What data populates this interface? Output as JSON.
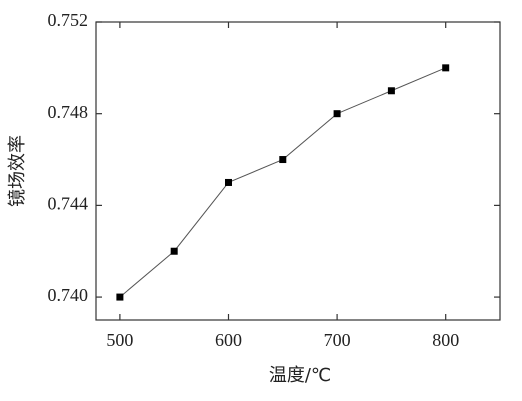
{
  "chart_data": {
    "type": "line",
    "x_label": "温度/℃",
    "y_label": "镜场效率",
    "x": [
      500,
      550,
      600,
      650,
      700,
      750,
      800
    ],
    "series": [
      {
        "color": "#000000",
        "values": [
          0.74,
          0.742,
          0.745,
          0.746,
          0.748,
          0.749,
          0.75
        ]
      }
    ],
    "xlim": [
      478,
      850
    ],
    "xticks": [
      500,
      600,
      700,
      800
    ],
    "ylim": [
      0.739,
      0.752
    ],
    "yticks": [
      {
        "value": 0.74,
        "label": "0.740"
      },
      0.744,
      0.748,
      0.752
    ],
    "marker": "square",
    "grid": false
  }
}
